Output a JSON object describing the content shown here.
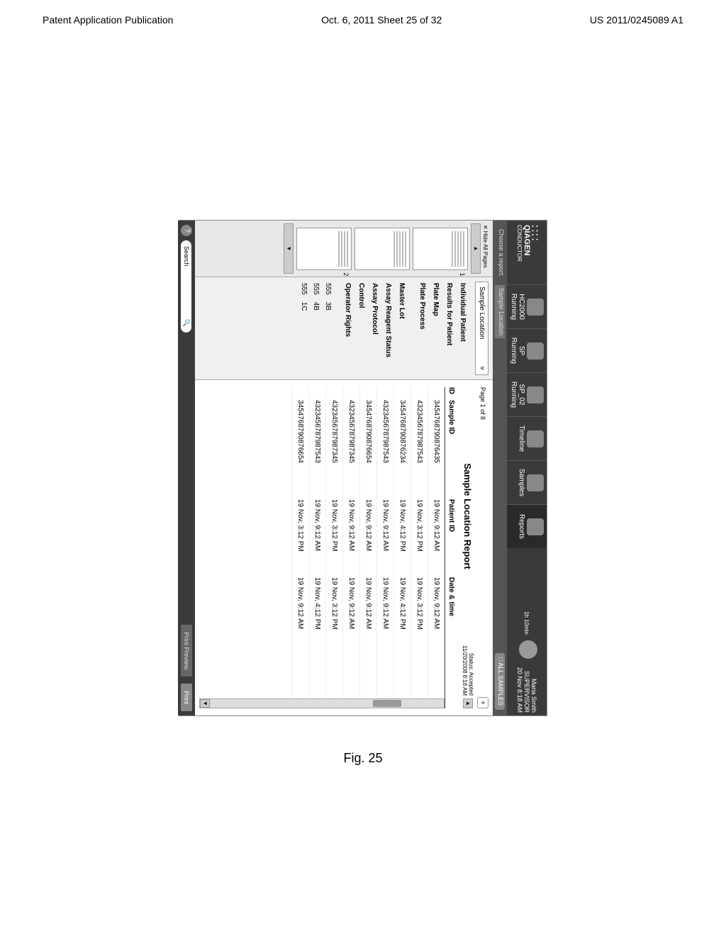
{
  "page_header": {
    "left": "Patent Application Publication",
    "center": "Oct. 6, 2011  Sheet 25 of 32",
    "right": "US 2011/0245089 A1"
  },
  "figure_caption": "Fig. 25",
  "brand": {
    "name": "QIAGEN",
    "product": "CONDUCTOR",
    "timer": "1h 10min"
  },
  "nav": [
    {
      "label1": "HC2000",
      "label2": "Running"
    },
    {
      "label1": "SP",
      "label2": "Running"
    },
    {
      "label1": "SP_02",
      "label2": "Running"
    },
    {
      "label1": "Timeline",
      "label2": ""
    },
    {
      "label1": "Samples",
      "label2": ""
    },
    {
      "label1": "Reports",
      "label2": ""
    }
  ],
  "user": {
    "name": "Maria Smith",
    "role": "SUPERVISOR",
    "dt": "20 Nov 8:18 AM"
  },
  "breadcrumb": {
    "choose": "Choose a report:",
    "current": "Sample Location",
    "all": "ALL SAMPLES"
  },
  "thumbs": {
    "hide": "Hide All Pages",
    "n1": "1",
    "n2": "2"
  },
  "sidebar": {
    "dropdown": "Sample Location",
    "items": [
      "Individual Patient",
      "Results for Patient",
      "Plate Map",
      "Plate Process"
    ],
    "sub": [
      "Master Lot",
      "Assay Reagent Status",
      "Assay Protocol",
      "Control",
      "Operator Rights"
    ],
    "rows": [
      {
        "a": "555",
        "b": "3B"
      },
      {
        "a": "555",
        "b": "4B"
      },
      {
        "a": "555",
        "b": "1C"
      }
    ]
  },
  "content": {
    "page_of": "Page 1 of 8",
    "title": "Sample Location Report",
    "status_label": "Status: Accepted",
    "status_dt": "11/20/2008 8:18 AM",
    "headers": {
      "id": "ID",
      "sample": "Sample ID",
      "patient": "Patient ID",
      "date": "Date & time"
    },
    "rows": [
      {
        "sample": "3454768790876435",
        "patient": "19 Nov, 9:12 AM",
        "date": "19 Nov, 9:12 AM"
      },
      {
        "sample": "4323456787987543",
        "patient": "19 Nov, 3:12 PM",
        "date": "19 Nov, 3:12 PM"
      },
      {
        "sample": "3454768790876234",
        "patient": "19 Nov, 4:12 PM",
        "date": "19 Nov, 4:12 PM"
      },
      {
        "sample": "4323456787987543",
        "patient": "19 Nov, 9:12 AM",
        "date": "19 Nov, 9:12 AM"
      },
      {
        "sample": "3454768790876654",
        "patient": "19 Nov, 9:12 AM",
        "date": "19 Nov, 9:12 AM"
      },
      {
        "sample": "4323456787987345",
        "patient": "19 Nov, 9:12 AM",
        "date": "19 Nov, 9:12 AM"
      },
      {
        "sample": "4323456787987345",
        "patient": "19 Nov, 3:12 PM",
        "date": "19 Nov, 3:12 PM"
      },
      {
        "sample": "4323456787987543",
        "patient": "19 Nov, 9:12 AM",
        "date": "19 Nov, 4:12 PM"
      },
      {
        "sample": "3454768790876654",
        "patient": "19 Nov, 3:12 PM",
        "date": "19 Nov, 9:12 AM"
      }
    ]
  },
  "footer": {
    "search": "Search",
    "preview": "Print Preview",
    "print": "Print"
  }
}
